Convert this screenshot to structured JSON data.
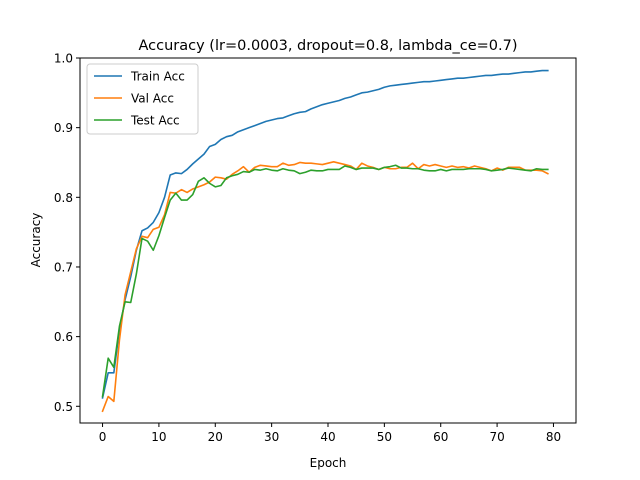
{
  "chart_data": {
    "type": "line",
    "title": "Accuracy (lr=0.0003, dropout=0.8, lambda_ce=0.7)",
    "xlabel": "Epoch",
    "ylabel": "Accuracy",
    "xlim": [
      -4,
      84
    ],
    "ylim": [
      0.476,
      1.0
    ],
    "xticks": [
      0,
      10,
      20,
      30,
      40,
      50,
      60,
      70,
      80
    ],
    "yticks": [
      0.5,
      0.6,
      0.7,
      0.8,
      0.9,
      1.0
    ],
    "xtick_labels": [
      "0",
      "10",
      "20",
      "30",
      "40",
      "50",
      "60",
      "70",
      "80"
    ],
    "ytick_labels": [
      "0.5",
      "0.6",
      "0.7",
      "0.8",
      "0.9",
      "1.0"
    ],
    "grid": false,
    "legend_position": "top-left",
    "x": [
      0,
      1,
      2,
      3,
      4,
      5,
      6,
      7,
      8,
      9,
      10,
      11,
      12,
      13,
      14,
      15,
      16,
      17,
      18,
      19,
      20,
      21,
      22,
      23,
      24,
      25,
      26,
      27,
      28,
      29,
      30,
      31,
      32,
      33,
      34,
      35,
      36,
      37,
      38,
      39,
      40,
      41,
      42,
      43,
      44,
      45,
      46,
      47,
      48,
      49,
      50,
      51,
      52,
      53,
      54,
      55,
      56,
      57,
      58,
      59,
      60,
      61,
      62,
      63,
      64,
      65,
      66,
      67,
      68,
      69,
      70,
      71,
      72,
      73,
      74,
      75,
      76,
      77,
      78,
      79
    ],
    "series": [
      {
        "name": "Train Acc",
        "color": "#1f77b4",
        "values": [
          0.512,
          0.548,
          0.548,
          0.61,
          0.653,
          0.686,
          0.724,
          0.752,
          0.756,
          0.764,
          0.778,
          0.8,
          0.832,
          0.835,
          0.834,
          0.84,
          0.848,
          0.855,
          0.862,
          0.873,
          0.876,
          0.883,
          0.887,
          0.889,
          0.894,
          0.897,
          0.9,
          0.903,
          0.906,
          0.909,
          0.911,
          0.913,
          0.914,
          0.917,
          0.92,
          0.922,
          0.923,
          0.927,
          0.93,
          0.933,
          0.935,
          0.937,
          0.939,
          0.942,
          0.944,
          0.947,
          0.95,
          0.951,
          0.953,
          0.955,
          0.958,
          0.96,
          0.961,
          0.962,
          0.963,
          0.964,
          0.965,
          0.966,
          0.966,
          0.967,
          0.968,
          0.969,
          0.97,
          0.971,
          0.971,
          0.972,
          0.973,
          0.974,
          0.975,
          0.975,
          0.976,
          0.977,
          0.977,
          0.978,
          0.979,
          0.98,
          0.98,
          0.981,
          0.982,
          0.982
        ]
      },
      {
        "name": "Val Acc",
        "color": "#ff7f0e",
        "values": [
          0.493,
          0.514,
          0.507,
          0.595,
          0.66,
          0.693,
          0.726,
          0.744,
          0.742,
          0.754,
          0.757,
          0.775,
          0.807,
          0.806,
          0.811,
          0.807,
          0.812,
          0.815,
          0.818,
          0.822,
          0.829,
          0.828,
          0.826,
          0.833,
          0.838,
          0.844,
          0.836,
          0.843,
          0.846,
          0.845,
          0.844,
          0.844,
          0.849,
          0.846,
          0.847,
          0.85,
          0.849,
          0.849,
          0.848,
          0.847,
          0.849,
          0.851,
          0.849,
          0.847,
          0.845,
          0.84,
          0.849,
          0.845,
          0.843,
          0.84,
          0.843,
          0.841,
          0.841,
          0.843,
          0.843,
          0.849,
          0.841,
          0.847,
          0.845,
          0.847,
          0.845,
          0.843,
          0.845,
          0.843,
          0.844,
          0.842,
          0.845,
          0.843,
          0.841,
          0.838,
          0.842,
          0.839,
          0.843,
          0.843,
          0.843,
          0.839,
          0.839,
          0.839,
          0.838,
          0.834
        ]
      },
      {
        "name": "Test Acc",
        "color": "#2ca02c",
        "values": [
          0.514,
          0.569,
          0.556,
          0.615,
          0.65,
          0.649,
          0.69,
          0.741,
          0.737,
          0.724,
          0.745,
          0.771,
          0.796,
          0.806,
          0.796,
          0.796,
          0.804,
          0.823,
          0.828,
          0.82,
          0.815,
          0.817,
          0.828,
          0.831,
          0.833,
          0.837,
          0.836,
          0.84,
          0.839,
          0.841,
          0.839,
          0.838,
          0.841,
          0.839,
          0.838,
          0.834,
          0.836,
          0.839,
          0.838,
          0.838,
          0.84,
          0.84,
          0.84,
          0.845,
          0.843,
          0.84,
          0.842,
          0.842,
          0.842,
          0.84,
          0.843,
          0.844,
          0.846,
          0.842,
          0.842,
          0.841,
          0.841,
          0.839,
          0.838,
          0.838,
          0.84,
          0.838,
          0.84,
          0.84,
          0.84,
          0.841,
          0.841,
          0.841,
          0.84,
          0.838,
          0.839,
          0.84,
          0.842,
          0.841,
          0.84,
          0.839,
          0.838,
          0.841,
          0.84,
          0.84
        ]
      }
    ]
  }
}
